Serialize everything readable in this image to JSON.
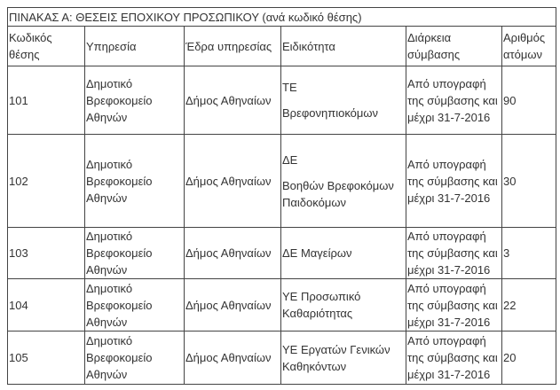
{
  "table": {
    "title": "ΠΙΝΑΚΑΣ Α: ΘΕΣΕΙΣ ΕΠΟΧΙΚΟΥ ΠΡΟΣΩΠΙΚΟΥ (ανά κωδικό θέσης)",
    "headers": [
      "Κωδικός θέσης",
      "Υπηρεσία",
      "Έδρα υπηρεσίας",
      "Ειδικότητα",
      "Διάρκεια σύμβασης",
      "Αριθμός ατόμων"
    ],
    "rows": [
      {
        "code": "101",
        "service": "Δημοτικό Βρεφοκομείο Αθηνών",
        "seat": "Δήμος Αθηναίων",
        "specialty": [
          "ΤΕ",
          "Βρεφονηπιοκόμων"
        ],
        "duration": "Από υπογραφή της σύμβασης και μέχρι 31-7-2016",
        "count": "90"
      },
      {
        "code": "102",
        "service": "Δημοτικό Βρεφοκομείο Αθηνών",
        "seat": "Δήμος Αθηναίων",
        "specialty": [
          "ΔΕ",
          "Βοηθών Βρεφοκόμων Παιδοκόμων"
        ],
        "duration": "Από υπογραφή της σύμβασης και μέχρι 31-7-2016",
        "count": "30"
      },
      {
        "code": "103",
        "service": "Δημοτικό Βρεφοκομείο Αθηνών",
        "seat": "Δήμος Αθηναίων",
        "specialty": [
          "ΔΕ Μαγείρων"
        ],
        "duration": "Από υπογραφή της σύμβασης και μέχρι 31-7-2016",
        "count": "3"
      },
      {
        "code": "104",
        "service": "Δημοτικό Βρεφοκομείο Αθηνών",
        "seat": "Δήμος Αθηναίων",
        "specialty": [
          "ΥΕ Προσωπικό Καθαριότητας"
        ],
        "duration": "Από υπογραφή της σύμβασης και μέχρι 31-7-2016",
        "count": "22"
      },
      {
        "code": "105",
        "service": "Δημοτικό Βρεφοκομείο Αθηνών",
        "seat": "Δήμος Αθηναίων",
        "specialty": [
          "ΥΕ Εργατών Γενικών Καθηκόντων"
        ],
        "duration": "Από υπογραφή της σύμβασης και μέχρι 31-7-2016",
        "count": "20"
      }
    ]
  }
}
